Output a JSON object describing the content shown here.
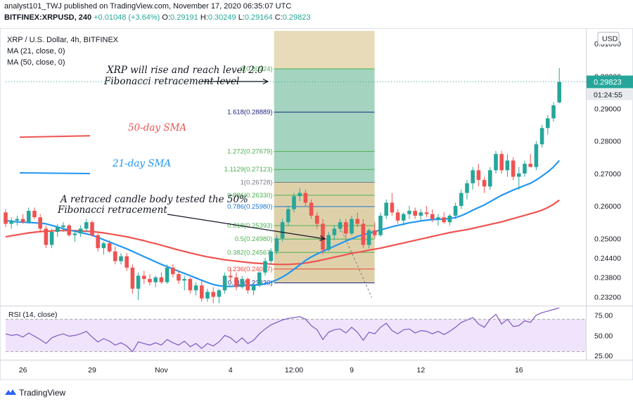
{
  "header": {
    "publisher_line": "analyst101_TWJ published on TradingView.com, November 17, 2020 06:35:07 UTC",
    "symbol_line": "BITFINEX:XRPUSD, 240",
    "change": "+0.01048 (+3.64%)",
    "o_label": "O:",
    "o_value": "0.29191",
    "h_label": "H:",
    "h_value": "0.30249",
    "l_label": "L:",
    "l_value": "0.29164",
    "c_label": "C:",
    "c_value": "0.29823",
    "last_price": "0.29823"
  },
  "legend": {
    "symbol_title": "XRP / U.S. Dollar, 4h, BITFINEX",
    "ma21": "MA (21, close, 0)",
    "ma50": "MA (50, close, 0)"
  },
  "currency_button": "USD",
  "colors": {
    "up": "#26a69a",
    "down": "#ef5350",
    "sma50": "#ef5350",
    "sma21": "#2196f3",
    "fib_zone_upper": "#86c6a9",
    "fib_zone_lower": "#d8c99b",
    "rsi": "#7e57c2",
    "rsi_band": "#efe4fb"
  },
  "chart_data": {
    "type": "candlestick",
    "price_axis": {
      "ylim": [
        0.2295,
        0.3135
      ],
      "ticks": [
        "0.31000",
        "0.30000",
        "0.29000",
        "0.28000",
        "0.27000",
        "0.26000",
        "0.25000",
        "0.24400",
        "0.23800",
        "0.23200"
      ]
    },
    "time_axis": {
      "ticks": [
        "26",
        "29",
        "Nov",
        "4",
        "12:00",
        "9",
        "12",
        "16"
      ]
    },
    "ohlc": [
      [
        0.258,
        0.259,
        0.2535,
        0.2545
      ],
      [
        0.2545,
        0.2565,
        0.253,
        0.2555
      ],
      [
        0.2555,
        0.257,
        0.254,
        0.256
      ],
      [
        0.256,
        0.2575,
        0.2545,
        0.255
      ],
      [
        0.255,
        0.2595,
        0.2545,
        0.2585
      ],
      [
        0.2585,
        0.2595,
        0.256,
        0.2565
      ],
      [
        0.2565,
        0.2575,
        0.252,
        0.253
      ],
      [
        0.253,
        0.254,
        0.247,
        0.248
      ],
      [
        0.248,
        0.253,
        0.247,
        0.252
      ],
      [
        0.252,
        0.2545,
        0.2505,
        0.2535
      ],
      [
        0.2535,
        0.255,
        0.252,
        0.254
      ],
      [
        0.254,
        0.2545,
        0.2505,
        0.251
      ],
      [
        0.251,
        0.2525,
        0.249,
        0.2515
      ],
      [
        0.2515,
        0.254,
        0.2505,
        0.253
      ],
      [
        0.253,
        0.256,
        0.252,
        0.255
      ],
      [
        0.255,
        0.2555,
        0.2505,
        0.251
      ],
      [
        0.251,
        0.2515,
        0.246,
        0.247
      ],
      [
        0.247,
        0.249,
        0.245,
        0.2485
      ],
      [
        0.2485,
        0.2495,
        0.2455,
        0.246
      ],
      [
        0.246,
        0.2475,
        0.242,
        0.243
      ],
      [
        0.243,
        0.2455,
        0.242,
        0.2445
      ],
      [
        0.2445,
        0.2455,
        0.24,
        0.241
      ],
      [
        0.241,
        0.242,
        0.233,
        0.2345
      ],
      [
        0.2345,
        0.2395,
        0.231,
        0.2385
      ],
      [
        0.2385,
        0.24,
        0.236,
        0.2375
      ],
      [
        0.2375,
        0.239,
        0.2355,
        0.2365
      ],
      [
        0.2365,
        0.2385,
        0.235,
        0.238
      ],
      [
        0.238,
        0.2395,
        0.236,
        0.2365
      ],
      [
        0.2365,
        0.242,
        0.236,
        0.241
      ],
      [
        0.241,
        0.242,
        0.238,
        0.239
      ],
      [
        0.239,
        0.24,
        0.236,
        0.237
      ],
      [
        0.237,
        0.2385,
        0.234,
        0.2375
      ],
      [
        0.2375,
        0.238,
        0.233,
        0.234
      ],
      [
        0.234,
        0.2365,
        0.2325,
        0.2355
      ],
      [
        0.2355,
        0.237,
        0.2305,
        0.2315
      ],
      [
        0.2315,
        0.2345,
        0.2305,
        0.2335
      ],
      [
        0.2335,
        0.235,
        0.23,
        0.232
      ],
      [
        0.232,
        0.2345,
        0.23,
        0.234
      ],
      [
        0.234,
        0.2395,
        0.233,
        0.2385
      ],
      [
        0.2385,
        0.241,
        0.237,
        0.238
      ],
      [
        0.238,
        0.2395,
        0.234,
        0.235
      ],
      [
        0.235,
        0.2385,
        0.2345,
        0.2375
      ],
      [
        0.2375,
        0.238,
        0.233,
        0.234
      ],
      [
        0.234,
        0.2365,
        0.2325,
        0.2355
      ],
      [
        0.2355,
        0.24,
        0.235,
        0.2395
      ],
      [
        0.2395,
        0.244,
        0.2385,
        0.243
      ],
      [
        0.243,
        0.247,
        0.242,
        0.246
      ],
      [
        0.246,
        0.251,
        0.245,
        0.25
      ],
      [
        0.25,
        0.256,
        0.249,
        0.255
      ],
      [
        0.255,
        0.26,
        0.254,
        0.259
      ],
      [
        0.259,
        0.264,
        0.258,
        0.263
      ],
      [
        0.263,
        0.2655,
        0.2615,
        0.264
      ],
      [
        0.264,
        0.265,
        0.26,
        0.261
      ],
      [
        0.261,
        0.262,
        0.256,
        0.257
      ],
      [
        0.257,
        0.258,
        0.253,
        0.2545
      ],
      [
        0.2545,
        0.256,
        0.245,
        0.2465
      ],
      [
        0.2465,
        0.252,
        0.246,
        0.251
      ],
      [
        0.251,
        0.254,
        0.2495,
        0.253
      ],
      [
        0.253,
        0.256,
        0.252,
        0.255
      ],
      [
        0.255,
        0.256,
        0.25,
        0.2515
      ],
      [
        0.2515,
        0.257,
        0.251,
        0.256
      ],
      [
        0.256,
        0.258,
        0.2535,
        0.2545
      ],
      [
        0.2545,
        0.256,
        0.247,
        0.248
      ],
      [
        0.248,
        0.253,
        0.247,
        0.2525
      ],
      [
        0.2525,
        0.255,
        0.25,
        0.251
      ],
      [
        0.251,
        0.258,
        0.2505,
        0.257
      ],
      [
        0.257,
        0.262,
        0.256,
        0.261
      ],
      [
        0.261,
        0.264,
        0.257,
        0.258
      ],
      [
        0.258,
        0.259,
        0.2545,
        0.2555
      ],
      [
        0.2555,
        0.258,
        0.254,
        0.2575
      ],
      [
        0.2575,
        0.26,
        0.256,
        0.2585
      ],
      [
        0.2585,
        0.2595,
        0.256,
        0.257
      ],
      [
        0.257,
        0.259,
        0.2555,
        0.258
      ],
      [
        0.258,
        0.26,
        0.2565,
        0.2575
      ],
      [
        0.2575,
        0.259,
        0.255,
        0.256
      ],
      [
        0.256,
        0.2575,
        0.254,
        0.2565
      ],
      [
        0.2565,
        0.258,
        0.2545,
        0.255
      ],
      [
        0.255,
        0.2575,
        0.254,
        0.257
      ],
      [
        0.257,
        0.261,
        0.256,
        0.26
      ],
      [
        0.26,
        0.265,
        0.259,
        0.264
      ],
      [
        0.264,
        0.268,
        0.262,
        0.267
      ],
      [
        0.267,
        0.272,
        0.265,
        0.271
      ],
      [
        0.271,
        0.273,
        0.266,
        0.268
      ],
      [
        0.268,
        0.269,
        0.264,
        0.266
      ],
      [
        0.266,
        0.272,
        0.265,
        0.271
      ],
      [
        0.271,
        0.277,
        0.27,
        0.276
      ],
      [
        0.276,
        0.277,
        0.27,
        0.271
      ],
      [
        0.271,
        0.276,
        0.269,
        0.274
      ],
      [
        0.274,
        0.275,
        0.268,
        0.269
      ],
      [
        0.269,
        0.272,
        0.265,
        0.27
      ],
      [
        0.27,
        0.274,
        0.269,
        0.273
      ],
      [
        0.273,
        0.276,
        0.272,
        0.272
      ],
      [
        0.272,
        0.28,
        0.271,
        0.279
      ],
      [
        0.279,
        0.285,
        0.278,
        0.284
      ],
      [
        0.284,
        0.288,
        0.282,
        0.287
      ],
      [
        0.287,
        0.292,
        0.286,
        0.291
      ],
      [
        0.2919,
        0.3025,
        0.2916,
        0.2982
      ]
    ],
    "sma21": {
      "name": "21-day SMA",
      "values": [
        0.2555,
        0.2553,
        0.2551,
        0.255,
        0.2549,
        0.2548,
        0.2547,
        0.2545,
        0.254,
        0.2535,
        0.253,
        0.2526,
        0.2522,
        0.2518,
        0.2514,
        0.251,
        0.2503,
        0.2496,
        0.2489,
        0.2482,
        0.2475,
        0.2468,
        0.246,
        0.2452,
        0.2444,
        0.2436,
        0.2428,
        0.242,
        0.2413,
        0.2406,
        0.2399,
        0.2392,
        0.2385,
        0.2378,
        0.2371,
        0.2364,
        0.2358,
        0.2354,
        0.2352,
        0.2352,
        0.2353,
        0.2354,
        0.2355,
        0.2356,
        0.2357,
        0.236,
        0.2365,
        0.2372,
        0.2381,
        0.2392,
        0.2405,
        0.2418,
        0.2432,
        0.2443,
        0.2452,
        0.246,
        0.2468,
        0.2476,
        0.2484,
        0.2492,
        0.2499,
        0.2506,
        0.2511,
        0.2516,
        0.2521,
        0.2526,
        0.2531,
        0.2536,
        0.254,
        0.2544,
        0.2548,
        0.2551,
        0.2554,
        0.2556,
        0.2558,
        0.2559,
        0.256,
        0.2561,
        0.2564,
        0.257,
        0.2578,
        0.2587,
        0.2595,
        0.2603,
        0.2613,
        0.2623,
        0.2633,
        0.2641,
        0.2649,
        0.2656,
        0.2663,
        0.267,
        0.268,
        0.2692,
        0.2705,
        0.272,
        0.274
      ]
    },
    "sma50": {
      "name": "50-day SMA",
      "values": [
        0.2505,
        0.2508,
        0.2511,
        0.2514,
        0.2517,
        0.2519,
        0.2521,
        0.2522,
        0.2523,
        0.2524,
        0.2524,
        0.2524,
        0.2524,
        0.2523,
        0.2522,
        0.2521,
        0.2519,
        0.2517,
        0.2514,
        0.2511,
        0.2508,
        0.2505,
        0.2501,
        0.2497,
        0.2493,
        0.2488,
        0.2484,
        0.2479,
        0.2474,
        0.2469,
        0.2464,
        0.246,
        0.2455,
        0.2451,
        0.2447,
        0.2443,
        0.244,
        0.2437,
        0.2434,
        0.2432,
        0.243,
        0.2428,
        0.2426,
        0.2424,
        0.2423,
        0.2422,
        0.2421,
        0.242,
        0.242,
        0.242,
        0.2421,
        0.2422,
        0.2424,
        0.2427,
        0.243,
        0.2434,
        0.2438,
        0.2442,
        0.2446,
        0.245,
        0.2454,
        0.2457,
        0.246,
        0.2464,
        0.2467,
        0.247,
        0.2474,
        0.2478,
        0.2482,
        0.2486,
        0.249,
        0.2494,
        0.2498,
        0.2502,
        0.2506,
        0.251,
        0.2514,
        0.2518,
        0.2521,
        0.2524,
        0.2527,
        0.2531,
        0.2535,
        0.2539,
        0.2543,
        0.2547,
        0.2551,
        0.2556,
        0.2561,
        0.2566,
        0.2571,
        0.2576,
        0.2581,
        0.2587,
        0.2595,
        0.2605,
        0.2618
      ]
    },
    "fibonacci": {
      "levels": [
        {
          "label": "2(0.30224)",
          "value": 0.30224,
          "color": "#4caf50"
        },
        {
          "label": "1.618(0.28889)",
          "value": 0.28889,
          "color": "#1a237e"
        },
        {
          "label": "1.272(0.27679)",
          "value": 0.27679,
          "color": "#4caf50"
        },
        {
          "label": "1.1129(0.27123)",
          "value": 0.27123,
          "color": "#4caf50"
        },
        {
          "label": "1(0.26728)",
          "value": 0.26728,
          "color": "#787b86"
        },
        {
          "label": "0.886(0.26330)",
          "value": 0.2633,
          "color": "#4caf50"
        },
        {
          "label": "0.786(0.25980)",
          "value": 0.2598,
          "color": "#1976d2"
        },
        {
          "label": "0.618(0.25393)",
          "value": 0.25393,
          "color": "#4caf50"
        },
        {
          "label": "0.5(0.24980)",
          "value": 0.2498,
          "color": "#4caf50"
        },
        {
          "label": "0.382(0.24567)",
          "value": 0.24567,
          "color": "#4caf50"
        },
        {
          "label": "0.236(0.24057)",
          "value": 0.24057,
          "color": "#f44336"
        },
        {
          "label": "0.114(0.23630)",
          "value": 0.2363,
          "color": "#1a237e"
        }
      ]
    },
    "rsi": {
      "title": "RSI (14, close)",
      "ylim": [
        20,
        85
      ],
      "ticks": [
        "75.00",
        "50.00",
        "25.00"
      ],
      "bands": [
        70,
        30
      ],
      "values": [
        52,
        50,
        51,
        48,
        53,
        49,
        45,
        40,
        47,
        50,
        52,
        49,
        50,
        52,
        55,
        48,
        42,
        46,
        43,
        38,
        41,
        37,
        30,
        42,
        40,
        38,
        41,
        38,
        45,
        41,
        38,
        43,
        36,
        40,
        34,
        40,
        37,
        42,
        50,
        47,
        41,
        47,
        40,
        44,
        52,
        58,
        63,
        66,
        69,
        71,
        72,
        73,
        70,
        62,
        57,
        45,
        54,
        57,
        58,
        53,
        60,
        54,
        44,
        54,
        52,
        60,
        65,
        56,
        52,
        57,
        58,
        53,
        56,
        55,
        52,
        55,
        51,
        55,
        60,
        66,
        69,
        72,
        64,
        60,
        70,
        76,
        64,
        70,
        61,
        62,
        68,
        66,
        75,
        78,
        80,
        82,
        84
      ]
    }
  },
  "annotations": {
    "sma50_label": "50-day SMA",
    "sma21_label": "21-day SMA",
    "top_note_line1": "XRP will rise and reach level 2.0",
    "top_note_line2": "Fibonacci retracement level",
    "bottom_note_line1": "A retraced candle body tested the 50%",
    "bottom_note_line2": "Fibonacci retracement"
  },
  "price_labels": {
    "current": "0.29823",
    "countdown": "01:24:55"
  },
  "footer": {
    "brand": "TradingView"
  }
}
